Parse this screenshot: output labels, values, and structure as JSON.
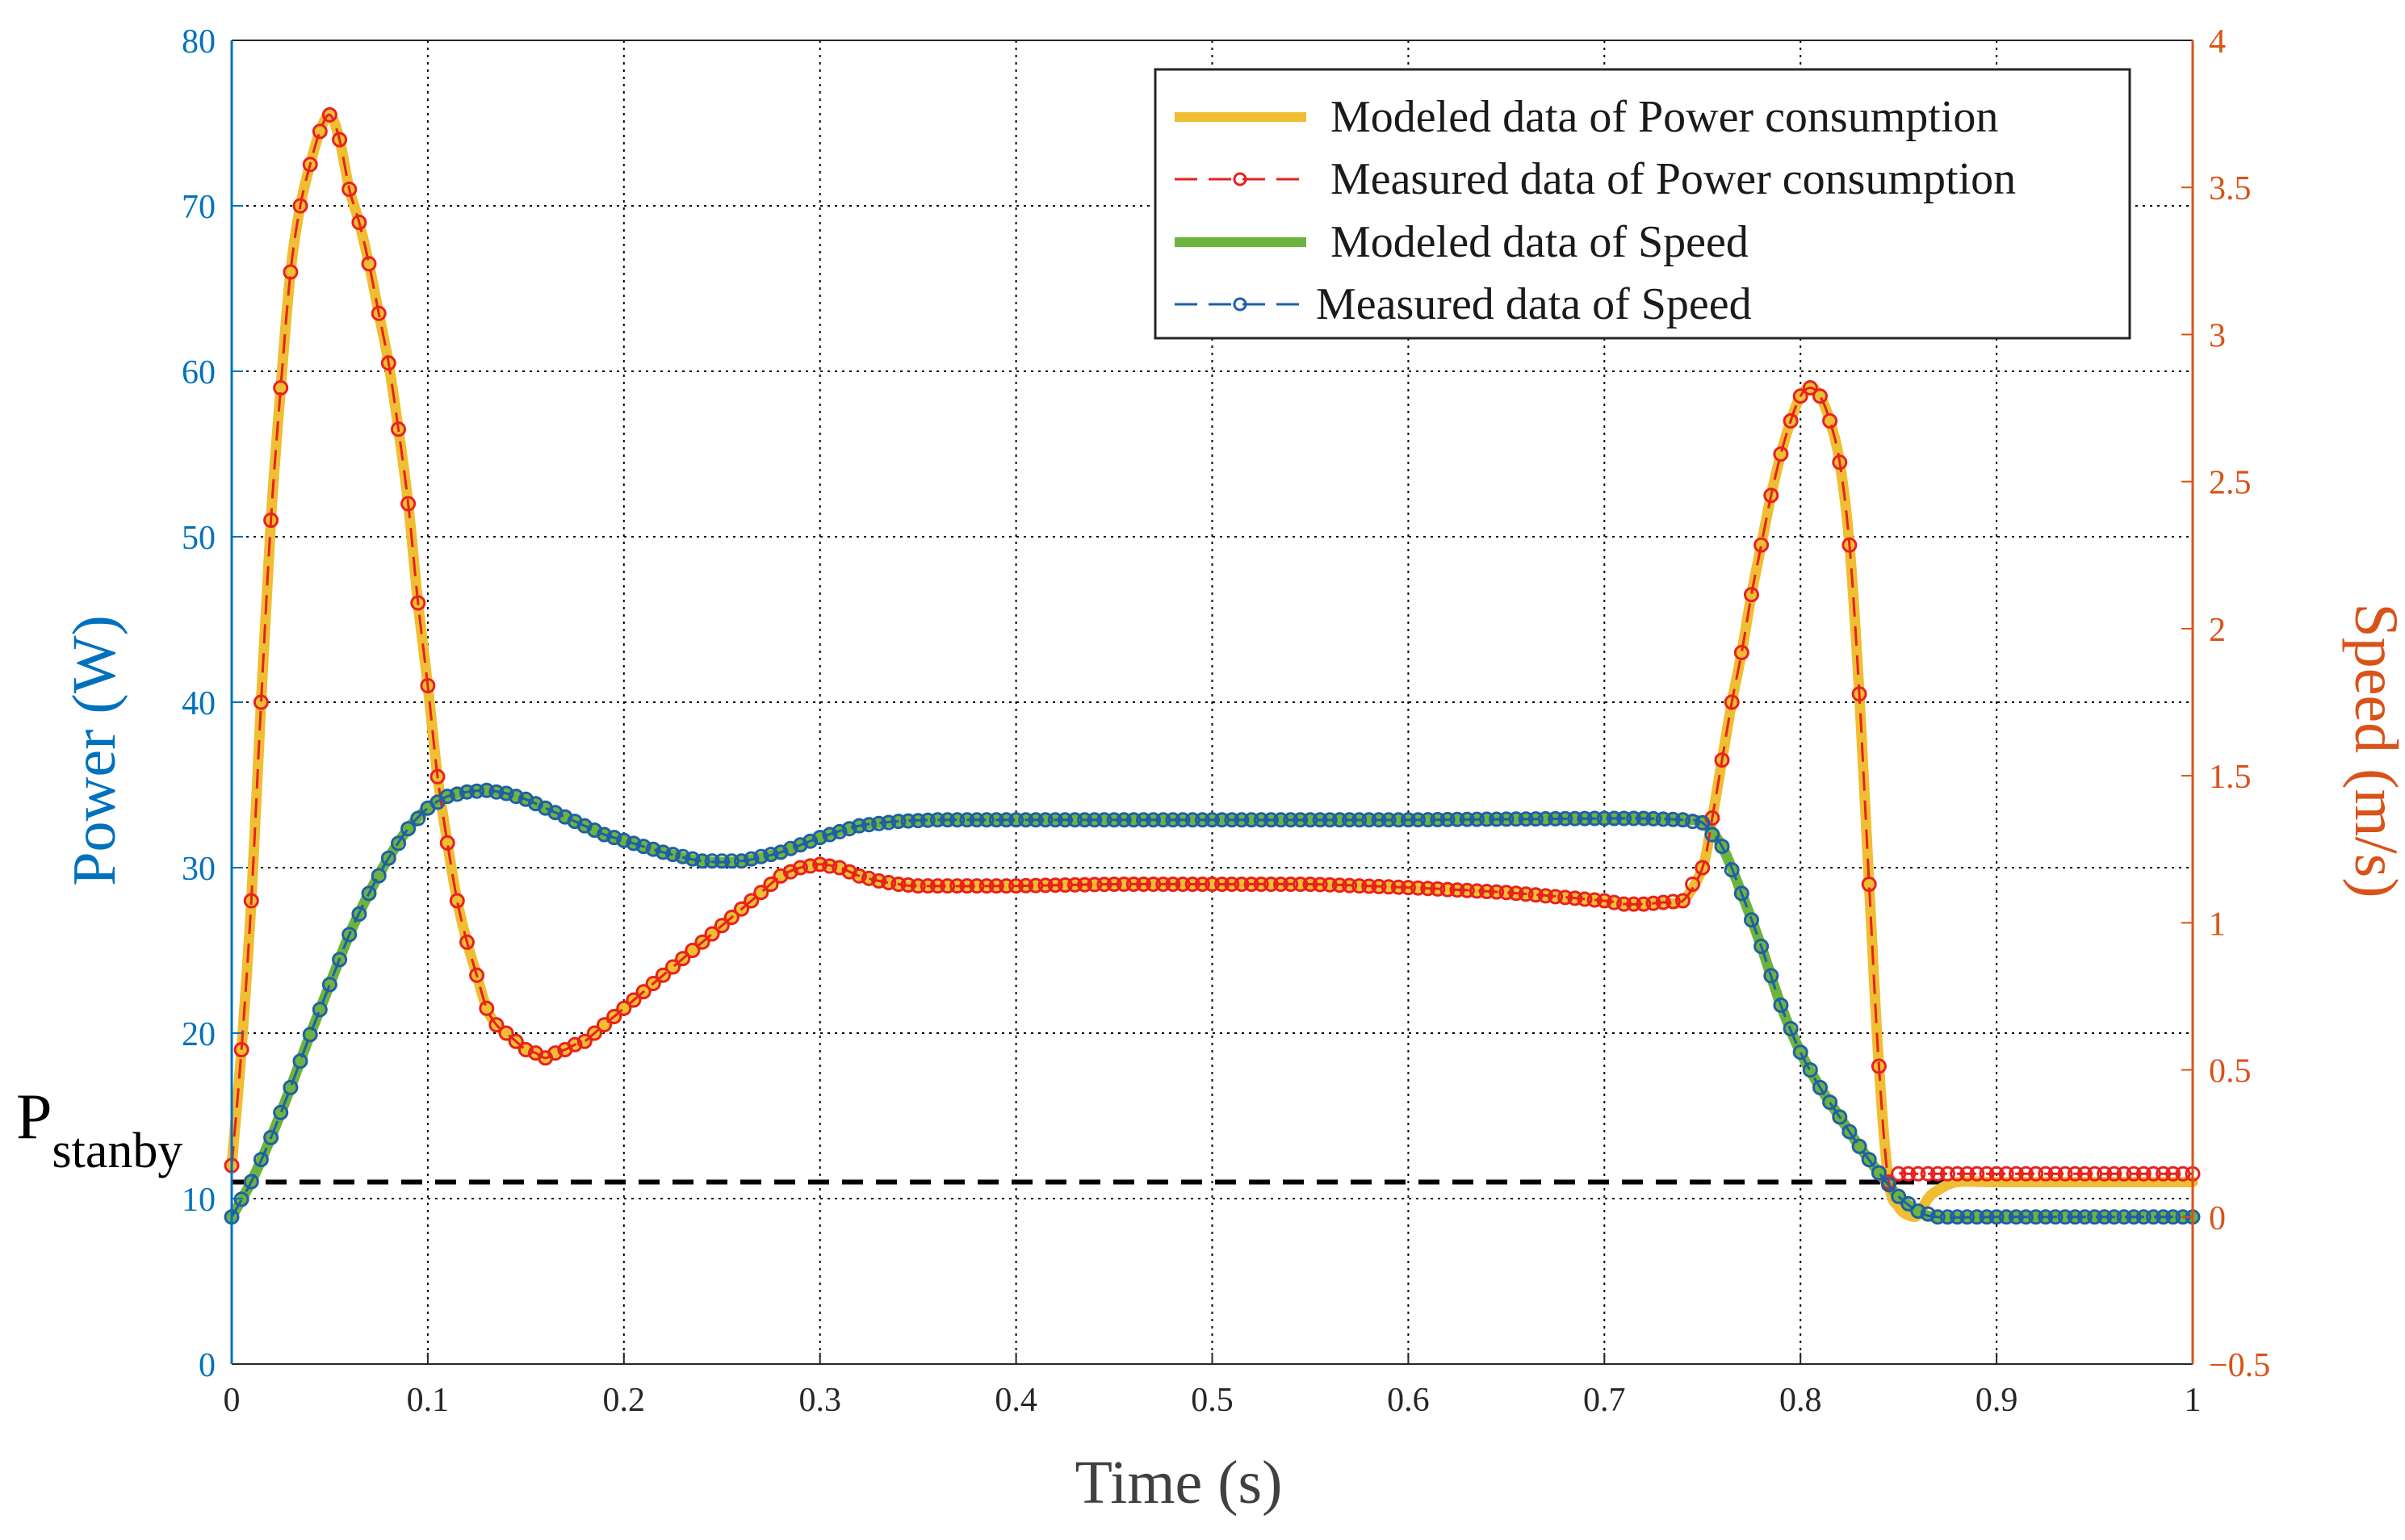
{
  "chart_data": {
    "type": "line",
    "xlabel": "Time (s)",
    "ylabel_left": "Power (W)",
    "ylabel_right": "Speed (m/s)",
    "xlim": [
      0,
      1
    ],
    "ylim_left": [
      0,
      80
    ],
    "ylim_right": [
      -0.5,
      4
    ],
    "xticks": [
      "0",
      "0.1",
      "0.2",
      "0.3",
      "0.4",
      "0.5",
      "0.6",
      "0.7",
      "0.8",
      "0.9",
      "1"
    ],
    "yticks_left": [
      "0",
      "10",
      "20",
      "30",
      "40",
      "50",
      "60",
      "70",
      "80"
    ],
    "yticks_right": [
      "−0.5",
      "0",
      "0.5",
      "1",
      "1.5",
      "2",
      "2.5",
      "3",
      "3.5",
      "4"
    ],
    "grid": "dotted",
    "legend_position": "top-right",
    "colors": {
      "power_model": "#F0BE32",
      "power_measured": "#E8201E",
      "speed_model": "#6DB33F",
      "speed_measured": "#1F5FA6",
      "left_axis": "#0072BD",
      "right_axis": "#D95319",
      "standby": "#000000"
    },
    "annotation": {
      "base": "P",
      "subscript": "stanby",
      "value_W": 11
    },
    "series": [
      {
        "name": "Modeled data of Power consumption",
        "axis": "left",
        "style": "solid-thick",
        "x": [
          0,
          0.005,
          0.01,
          0.015,
          0.02,
          0.025,
          0.03,
          0.035,
          0.04,
          0.045,
          0.05,
          0.055,
          0.06,
          0.065,
          0.07,
          0.075,
          0.08,
          0.085,
          0.09,
          0.095,
          0.1,
          0.105,
          0.11,
          0.115,
          0.12,
          0.125,
          0.13,
          0.135,
          0.14,
          0.145,
          0.15,
          0.155,
          0.16,
          0.165,
          0.17,
          0.175,
          0.18,
          0.185,
          0.19,
          0.2,
          0.21,
          0.22,
          0.23,
          0.24,
          0.25,
          0.26,
          0.27,
          0.28,
          0.29,
          0.3,
          0.31,
          0.32,
          0.33,
          0.34,
          0.35,
          0.4,
          0.45,
          0.5,
          0.55,
          0.6,
          0.65,
          0.7,
          0.71,
          0.72,
          0.73,
          0.74,
          0.75,
          0.755,
          0.76,
          0.765,
          0.77,
          0.775,
          0.78,
          0.785,
          0.79,
          0.795,
          0.8,
          0.805,
          0.81,
          0.815,
          0.82,
          0.825,
          0.83,
          0.835,
          0.84,
          0.845,
          0.85,
          0.855,
          0.86,
          0.865,
          0.87,
          0.88,
          0.9,
          0.95,
          1.0
        ],
        "values": [
          12,
          19,
          28,
          40,
          51,
          59,
          66,
          70,
          72.5,
          74.5,
          75.5,
          74,
          71,
          69,
          66.5,
          63.5,
          60.5,
          56.5,
          52,
          46,
          41,
          35.5,
          31.5,
          28,
          25.5,
          23.5,
          21.5,
          20.5,
          20,
          19.5,
          19,
          18.8,
          18.5,
          18.8,
          19,
          19.3,
          19.5,
          20,
          20.5,
          21.5,
          22.5,
          23.5,
          24.5,
          25.5,
          26.5,
          27.5,
          28.5,
          29.5,
          30,
          30.2,
          30,
          29.5,
          29.2,
          29,
          28.9,
          28.9,
          29,
          29,
          29,
          28.8,
          28.5,
          28,
          27.8,
          27.8,
          27.9,
          28,
          30,
          33,
          36.5,
          40,
          43,
          46.5,
          49.5,
          52.5,
          55,
          57,
          58.5,
          59,
          58.5,
          57,
          54.5,
          49.5,
          40.5,
          29,
          18,
          11,
          9.5,
          9,
          9,
          10,
          10.5,
          11,
          11,
          11,
          11
        ]
      },
      {
        "name": "Measured data of Power consumption",
        "axis": "left",
        "style": "dashed-circles",
        "x": [
          0,
          0.005,
          0.01,
          0.015,
          0.02,
          0.025,
          0.03,
          0.035,
          0.04,
          0.045,
          0.05,
          0.055,
          0.06,
          0.065,
          0.07,
          0.075,
          0.08,
          0.085,
          0.09,
          0.095,
          0.1,
          0.105,
          0.11,
          0.115,
          0.12,
          0.125,
          0.13,
          0.135,
          0.14,
          0.145,
          0.15,
          0.155,
          0.16,
          0.165,
          0.17,
          0.175,
          0.18,
          0.185,
          0.19,
          0.2,
          0.21,
          0.22,
          0.23,
          0.24,
          0.25,
          0.26,
          0.27,
          0.28,
          0.29,
          0.3,
          0.31,
          0.32,
          0.33,
          0.34,
          0.35,
          0.4,
          0.45,
          0.5,
          0.55,
          0.6,
          0.65,
          0.7,
          0.71,
          0.72,
          0.73,
          0.74,
          0.75,
          0.755,
          0.76,
          0.765,
          0.77,
          0.775,
          0.78,
          0.785,
          0.79,
          0.795,
          0.8,
          0.805,
          0.81,
          0.815,
          0.82,
          0.825,
          0.83,
          0.835,
          0.84,
          0.845,
          0.85,
          0.855,
          0.86,
          0.865,
          0.87,
          0.88,
          0.9,
          0.95,
          1.0
        ],
        "values": [
          12,
          19,
          28,
          40,
          51,
          59,
          66,
          70,
          72.5,
          74.5,
          75.5,
          74,
          71,
          69,
          66.5,
          63.5,
          60.5,
          56.5,
          52,
          46,
          41,
          35.5,
          31.5,
          28,
          25.5,
          23.5,
          21.5,
          20.5,
          20,
          19.5,
          19,
          18.8,
          18.5,
          18.8,
          19,
          19.3,
          19.5,
          20,
          20.5,
          21.5,
          22.5,
          23.5,
          24.5,
          25.5,
          26.5,
          27.5,
          28.5,
          29.5,
          30,
          30.2,
          30,
          29.5,
          29.2,
          29,
          28.9,
          28.9,
          29,
          29,
          29,
          28.8,
          28.5,
          28,
          27.8,
          27.8,
          27.9,
          28,
          30,
          33,
          36.5,
          40,
          43,
          46.5,
          49.5,
          52.5,
          55,
          57,
          58.5,
          59,
          58.5,
          57,
          54.5,
          49.5,
          40.5,
          29,
          18,
          11,
          11.5,
          11.5,
          11.5,
          11.5,
          11.5,
          11.5,
          11.5,
          11.5,
          11.5
        ]
      },
      {
        "name": "Modeled data of Speed",
        "axis": "right",
        "style": "solid-thick",
        "x": [
          0,
          0.01,
          0.02,
          0.03,
          0.04,
          0.05,
          0.06,
          0.07,
          0.08,
          0.09,
          0.1,
          0.11,
          0.12,
          0.13,
          0.14,
          0.15,
          0.16,
          0.17,
          0.18,
          0.19,
          0.2,
          0.22,
          0.24,
          0.26,
          0.28,
          0.3,
          0.32,
          0.34,
          0.36,
          0.4,
          0.5,
          0.6,
          0.7,
          0.72,
          0.74,
          0.75,
          0.76,
          0.77,
          0.78,
          0.79,
          0.8,
          0.81,
          0.82,
          0.83,
          0.84,
          0.85,
          0.86,
          0.87,
          0.9,
          0.95,
          1.0
        ],
        "values": [
          0.0,
          0.12,
          0.27,
          0.44,
          0.62,
          0.79,
          0.96,
          1.1,
          1.22,
          1.32,
          1.39,
          1.43,
          1.445,
          1.45,
          1.44,
          1.42,
          1.39,
          1.36,
          1.33,
          1.3,
          1.28,
          1.24,
          1.21,
          1.21,
          1.24,
          1.29,
          1.33,
          1.345,
          1.35,
          1.35,
          1.35,
          1.35,
          1.355,
          1.355,
          1.35,
          1.34,
          1.26,
          1.1,
          0.92,
          0.72,
          0.56,
          0.44,
          0.34,
          0.24,
          0.15,
          0.07,
          0.02,
          0.0,
          0.0,
          0.0,
          0.0
        ]
      },
      {
        "name": "Measured data of Speed",
        "axis": "right",
        "style": "dashed-circles",
        "x": [
          0,
          0.01,
          0.02,
          0.03,
          0.04,
          0.05,
          0.06,
          0.07,
          0.08,
          0.09,
          0.1,
          0.11,
          0.12,
          0.13,
          0.14,
          0.15,
          0.16,
          0.17,
          0.18,
          0.19,
          0.2,
          0.22,
          0.24,
          0.26,
          0.28,
          0.3,
          0.32,
          0.34,
          0.36,
          0.4,
          0.5,
          0.6,
          0.7,
          0.72,
          0.74,
          0.75,
          0.76,
          0.77,
          0.78,
          0.79,
          0.8,
          0.81,
          0.82,
          0.83,
          0.84,
          0.85,
          0.86,
          0.87,
          0.9,
          0.95,
          1.0
        ],
        "values": [
          0.0,
          0.12,
          0.27,
          0.44,
          0.62,
          0.79,
          0.96,
          1.1,
          1.22,
          1.32,
          1.39,
          1.43,
          1.445,
          1.45,
          1.44,
          1.42,
          1.39,
          1.36,
          1.33,
          1.3,
          1.28,
          1.24,
          1.21,
          1.21,
          1.24,
          1.29,
          1.33,
          1.345,
          1.35,
          1.35,
          1.35,
          1.35,
          1.355,
          1.355,
          1.35,
          1.34,
          1.26,
          1.1,
          0.92,
          0.72,
          0.56,
          0.44,
          0.34,
          0.24,
          0.15,
          0.07,
          0.02,
          0.0,
          0.0,
          0.0,
          0.0
        ]
      }
    ]
  }
}
